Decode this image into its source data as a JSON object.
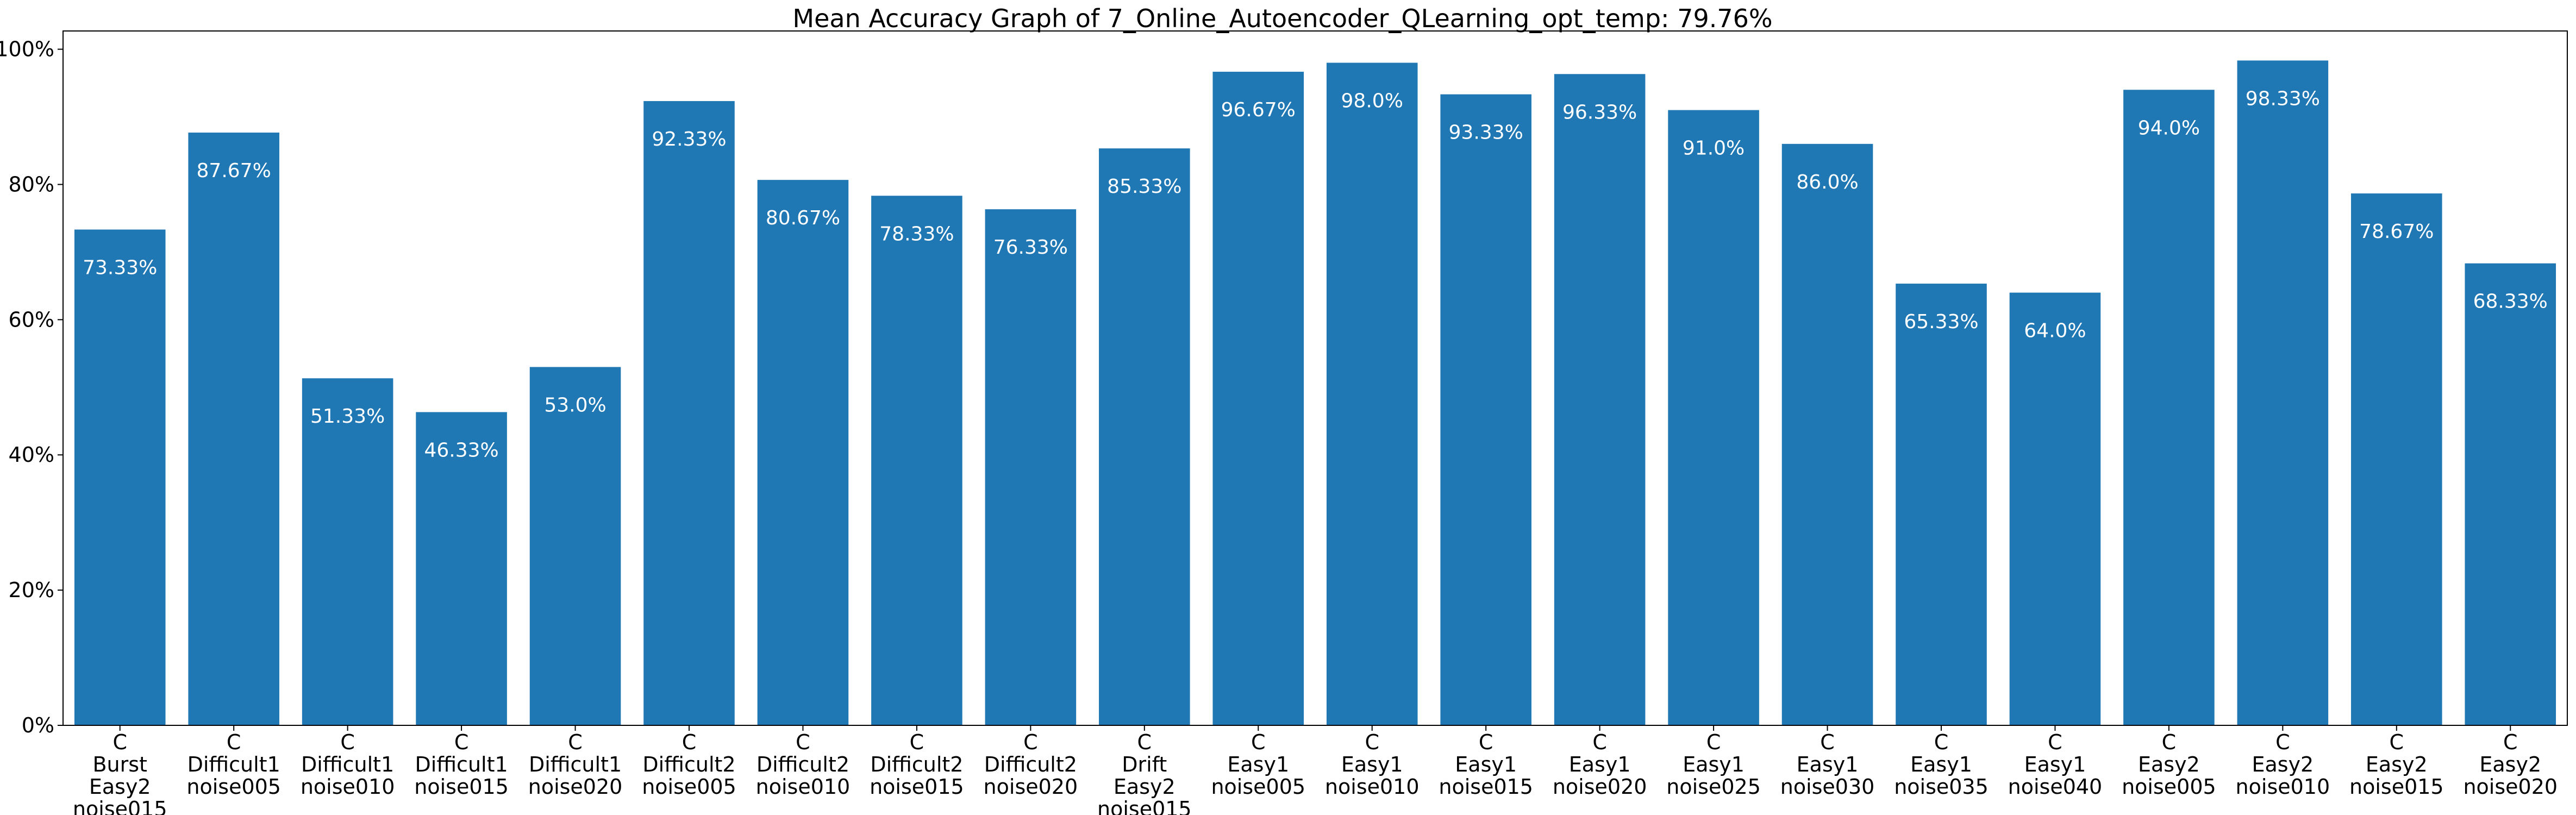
{
  "chart_data": {
    "type": "bar",
    "title": "Mean Accuracy Graph of 7_Online_Autoencoder_QLearning_opt_temp: 79.76%",
    "xlabel": "",
    "ylabel": "",
    "ylim": [
      0,
      100
    ],
    "yticks": [
      0,
      20,
      40,
      60,
      80,
      100
    ],
    "ytick_labels": [
      "0%",
      "20%",
      "40%",
      "60%",
      "80%",
      "100%"
    ],
    "grid": false,
    "bar_color": "#1f77b4",
    "label_color": "#ffffff",
    "categories": [
      [
        "C",
        "Burst",
        "Easy2",
        "noise015"
      ],
      [
        "C",
        "Difficult1",
        "noise005"
      ],
      [
        "C",
        "Difficult1",
        "noise010"
      ],
      [
        "C",
        "Difficult1",
        "noise015"
      ],
      [
        "C",
        "Difficult1",
        "noise020"
      ],
      [
        "C",
        "Difficult2",
        "noise005"
      ],
      [
        "C",
        "Difficult2",
        "noise010"
      ],
      [
        "C",
        "Difficult2",
        "noise015"
      ],
      [
        "C",
        "Difficult2",
        "noise020"
      ],
      [
        "C",
        "Drift",
        "Easy2",
        "noise015"
      ],
      [
        "C",
        "Easy1",
        "noise005"
      ],
      [
        "C",
        "Easy1",
        "noise010"
      ],
      [
        "C",
        "Easy1",
        "noise015"
      ],
      [
        "C",
        "Easy1",
        "noise020"
      ],
      [
        "C",
        "Easy1",
        "noise025"
      ],
      [
        "C",
        "Easy1",
        "noise030"
      ],
      [
        "C",
        "Easy1",
        "noise035"
      ],
      [
        "C",
        "Easy1",
        "noise040"
      ],
      [
        "C",
        "Easy2",
        "noise005"
      ],
      [
        "C",
        "Easy2",
        "noise010"
      ],
      [
        "C",
        "Easy2",
        "noise015"
      ],
      [
        "C",
        "Easy2",
        "noise020"
      ]
    ],
    "values": [
      73.33,
      87.67,
      51.33,
      46.33,
      53.0,
      92.33,
      80.67,
      78.33,
      76.33,
      85.33,
      96.67,
      98.0,
      93.33,
      96.33,
      91.0,
      86.0,
      65.33,
      64.0,
      94.0,
      98.33,
      78.67,
      68.33
    ],
    "data_labels": [
      "73.33%",
      "87.67%",
      "51.33%",
      "46.33%",
      "53.0%",
      "92.33%",
      "80.67%",
      "78.33%",
      "76.33%",
      "85.33%",
      "96.67%",
      "98.0%",
      "93.33%",
      "96.33%",
      "91.0%",
      "86.0%",
      "65.33%",
      "64.0%",
      "94.0%",
      "98.33%",
      "78.67%",
      "68.33%"
    ]
  }
}
